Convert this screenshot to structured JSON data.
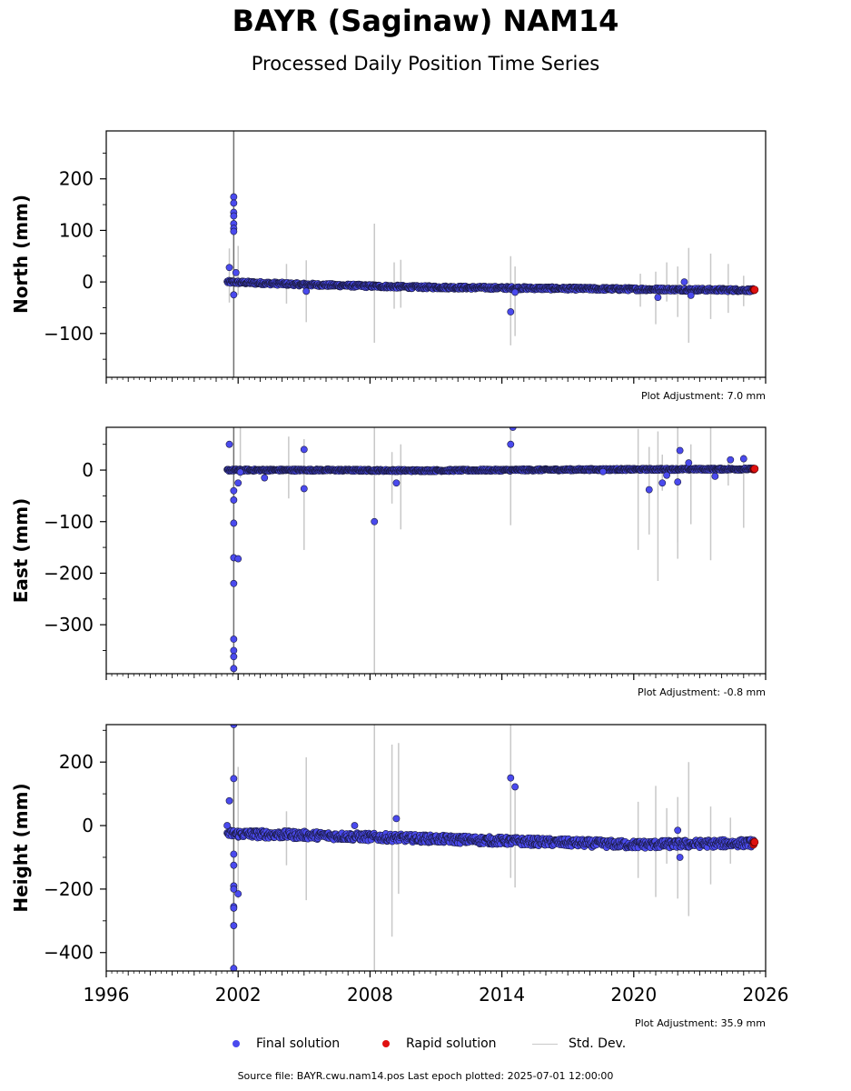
{
  "header": {
    "title": "BAYR (Saginaw) NAM14",
    "subtitle": "Processed Daily Position Time Series"
  },
  "panels": [
    {
      "ylabel": "North (mm)",
      "adjustment": "Plot Adjustment: 7.0 mm"
    },
    {
      "ylabel": "East (mm)",
      "adjustment": "Plot Adjustment: -0.8 mm"
    },
    {
      "ylabel": "Height (mm)",
      "adjustment": "Plot Adjustment: 35.9 mm"
    }
  ],
  "legend": {
    "final": "Final solution",
    "rapid": "Rapid solution",
    "stddev": "Std. Dev."
  },
  "footer": {
    "source": "Source file: BAYR.cwu.nam14.pos  Last epoch plotted: 2025-07-01 12:00:00"
  },
  "colors": {
    "final": "#4a4aee",
    "rapid": "#e01010",
    "stddev": "#c8c8c8"
  },
  "chart_data": [
    {
      "type": "scatter",
      "ylabel": "North (mm)",
      "xlim": [
        1996,
        2026
      ],
      "ylim": [
        -185,
        293
      ],
      "xticks": [
        "1996",
        "2002",
        "2008",
        "2014",
        "2020",
        "2026"
      ],
      "yticks": [
        -100,
        0,
        100,
        200
      ],
      "trend": [
        [
          2001.5,
          0
        ],
        [
          2005,
          -5
        ],
        [
          2010,
          -10
        ],
        [
          2015,
          -12
        ],
        [
          2020,
          -14
        ],
        [
          2025.5,
          -16
        ]
      ],
      "noise": 3,
      "series": [
        {
          "name": "Final solution",
          "x_range": [
            2001.5,
            2025.45
          ]
        },
        {
          "name": "Rapid solution",
          "x_range": [
            2025.45,
            2025.5
          ]
        }
      ],
      "outliers": [
        [
          2001.8,
          165
        ],
        [
          2001.8,
          153
        ],
        [
          2001.8,
          135
        ],
        [
          2001.8,
          128
        ],
        [
          2001.8,
          113
        ],
        [
          2001.8,
          104
        ],
        [
          2001.8,
          98
        ],
        [
          2001.6,
          28
        ],
        [
          2001.9,
          18
        ],
        [
          2001.8,
          -25
        ],
        [
          2005.1,
          -18
        ],
        [
          2014.4,
          -58
        ],
        [
          2014.6,
          -20
        ],
        [
          2021.1,
          -30
        ],
        [
          2022.3,
          0
        ],
        [
          2022.6,
          -26
        ]
      ],
      "error_bars": [
        [
          2001.8,
          -185,
          293
        ],
        [
          2001.6,
          -40,
          65
        ],
        [
          2002.0,
          -25,
          70
        ],
        [
          2004.2,
          -42,
          35
        ],
        [
          2005.1,
          -78,
          42
        ],
        [
          2008.2,
          -118,
          113
        ],
        [
          2009.1,
          -52,
          38
        ],
        [
          2009.4,
          -50,
          43
        ],
        [
          2014.4,
          -123,
          50
        ],
        [
          2014.6,
          -105,
          30
        ],
        [
          2020.3,
          -48,
          16
        ],
        [
          2021.0,
          -82,
          20
        ],
        [
          2021.5,
          -38,
          38
        ],
        [
          2022.0,
          -68,
          30
        ],
        [
          2022.5,
          -118,
          66
        ],
        [
          2023.5,
          -72,
          55
        ],
        [
          2024.3,
          -60,
          35
        ],
        [
          2025.0,
          -47,
          12
        ]
      ]
    },
    {
      "type": "scatter",
      "ylabel": "East (mm)",
      "xlim": [
        1996,
        2026
      ],
      "ylim": [
        -395,
        83
      ],
      "xticks": [
        "1996",
        "2002",
        "2008",
        "2014",
        "2020",
        "2026"
      ],
      "yticks": [
        -300,
        -200,
        -100,
        0
      ],
      "trend": [
        [
          2001.5,
          0
        ],
        [
          2006,
          0
        ],
        [
          2010,
          -1
        ],
        [
          2014,
          0
        ],
        [
          2018,
          1
        ],
        [
          2025.5,
          2
        ]
      ],
      "noise": 2,
      "series": [
        {
          "name": "Final solution",
          "x_range": [
            2001.5,
            2025.45
          ]
        },
        {
          "name": "Rapid solution",
          "x_range": [
            2025.45,
            2025.5
          ]
        }
      ],
      "outliers": [
        [
          2001.6,
          50
        ],
        [
          2001.8,
          -40
        ],
        [
          2001.8,
          -58
        ],
        [
          2002.0,
          -25
        ],
        [
          2001.8,
          -103
        ],
        [
          2001.8,
          -170
        ],
        [
          2002.0,
          -172
        ],
        [
          2001.8,
          -220
        ],
        [
          2001.8,
          -328
        ],
        [
          2001.8,
          -350
        ],
        [
          2001.8,
          -362
        ],
        [
          2001.8,
          -385
        ],
        [
          2002.1,
          -4
        ],
        [
          2003.2,
          -15
        ],
        [
          2005.0,
          40
        ],
        [
          2005.0,
          -36
        ],
        [
          2008.2,
          -100
        ],
        [
          2009.2,
          -25
        ],
        [
          2014.4,
          50
        ],
        [
          2014.5,
          83
        ],
        [
          2018.6,
          -3
        ],
        [
          2020.7,
          -38
        ],
        [
          2021.3,
          -25
        ],
        [
          2021.5,
          -10
        ],
        [
          2022.1,
          38
        ],
        [
          2022.0,
          -23
        ],
        [
          2022.5,
          14
        ],
        [
          2023.7,
          -12
        ],
        [
          2024.4,
          20
        ],
        [
          2025.0,
          22
        ]
      ],
      "error_bars": [
        [
          2001.8,
          -395,
          83
        ],
        [
          2002.1,
          -15,
          83
        ],
        [
          2004.3,
          -55,
          65
        ],
        [
          2005.0,
          -155,
          60
        ],
        [
          2008.2,
          -395,
          83
        ],
        [
          2009.0,
          -65,
          35
        ],
        [
          2009.4,
          -115,
          50
        ],
        [
          2014.4,
          -107,
          83
        ],
        [
          2020.2,
          -155,
          80
        ],
        [
          2020.7,
          -125,
          45
        ],
        [
          2021.1,
          -215,
          75
        ],
        [
          2021.3,
          -40,
          30
        ],
        [
          2022.0,
          -140,
          83
        ],
        [
          2022.0,
          -172,
          30
        ],
        [
          2022.6,
          -105,
          50
        ],
        [
          2023.5,
          -175,
          83
        ],
        [
          2024.3,
          -30,
          20
        ],
        [
          2025.0,
          -112,
          30
        ]
      ]
    },
    {
      "type": "scatter",
      "ylabel": "Height (mm)",
      "xlim": [
        1996,
        2026
      ],
      "ylim": [
        -458,
        318
      ],
      "xticks": [
        "1996",
        "2002",
        "2008",
        "2014",
        "2020",
        "2026"
      ],
      "yticks": [
        -400,
        -200,
        0,
        200
      ],
      "trend": [
        [
          2001.5,
          -25
        ],
        [
          2005,
          -30
        ],
        [
          2010,
          -40
        ],
        [
          2015,
          -50
        ],
        [
          2020,
          -60
        ],
        [
          2025.5,
          -55
        ]
      ],
      "noise": 12,
      "series": [
        {
          "name": "Final solution",
          "x_range": [
            2001.5,
            2025.45
          ]
        },
        {
          "name": "Rapid solution",
          "x_range": [
            2025.45,
            2025.5
          ]
        }
      ],
      "outliers": [
        [
          2001.8,
          318
        ],
        [
          2001.8,
          148
        ],
        [
          2001.6,
          78
        ],
        [
          2001.5,
          0
        ],
        [
          2001.8,
          -90
        ],
        [
          2001.8,
          -125
        ],
        [
          2001.8,
          -190
        ],
        [
          2001.8,
          -200
        ],
        [
          2002.0,
          -215
        ],
        [
          2001.8,
          -255
        ],
        [
          2001.8,
          -260
        ],
        [
          2001.8,
          -315
        ],
        [
          2001.8,
          -450
        ],
        [
          2007.3,
          0
        ],
        [
          2009.2,
          22
        ],
        [
          2014.4,
          150
        ],
        [
          2014.6,
          122
        ],
        [
          2022.1,
          -100
        ],
        [
          2022.0,
          -15
        ]
      ],
      "error_bars": [
        [
          2001.8,
          -458,
          318
        ],
        [
          2002.0,
          -230,
          185
        ],
        [
          2004.2,
          -125,
          45
        ],
        [
          2005.1,
          -235,
          215
        ],
        [
          2008.2,
          -458,
          318
        ],
        [
          2009.0,
          -350,
          255
        ],
        [
          2009.3,
          -215,
          260
        ],
        [
          2014.4,
          -165,
          318
        ],
        [
          2014.6,
          -195,
          130
        ],
        [
          2020.2,
          -165,
          75
        ],
        [
          2021.0,
          -225,
          125
        ],
        [
          2021.5,
          -120,
          55
        ],
        [
          2022.0,
          -230,
          90
        ],
        [
          2022.5,
          -285,
          200
        ],
        [
          2023.5,
          -185,
          60
        ],
        [
          2024.4,
          -120,
          25
        ]
      ]
    }
  ]
}
